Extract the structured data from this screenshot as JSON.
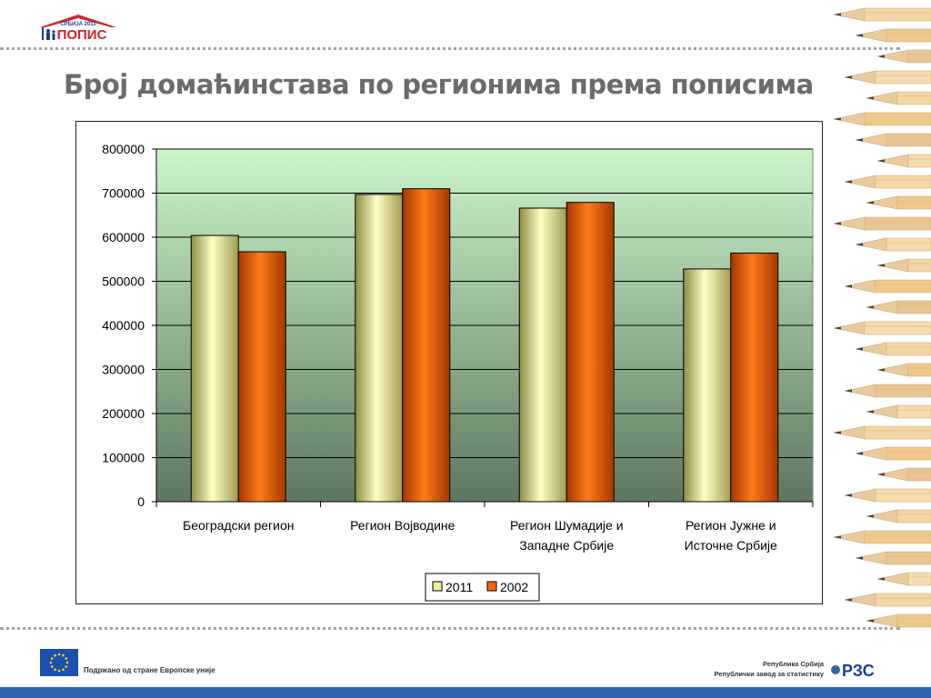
{
  "logo": {
    "top_text": "СРБИЈА 2011",
    "main_text": "ПОПИС"
  },
  "title": "Број домаћинстава по регионима према пописима",
  "chart_data": {
    "type": "bar",
    "title": "",
    "xlabel": "",
    "ylabel": "",
    "categories": [
      [
        "Београдски регион"
      ],
      [
        "Регион Војводине"
      ],
      [
        "Регион Шумадије и",
        "Западне Србије"
      ],
      [
        "Регион Јужне и",
        "Источне Србије"
      ]
    ],
    "series": [
      {
        "name": "2011",
        "values": [
          604000,
          697000,
          666000,
          528000
        ],
        "color": "#f0ee9a"
      },
      {
        "name": "2002",
        "values": [
          567000,
          710000,
          679000,
          564000
        ],
        "color": "#ff6600"
      }
    ],
    "ylim": [
      0,
      800000
    ],
    "yticks": [
      "0",
      "100000",
      "200000",
      "300000",
      "400000",
      "500000",
      "600000",
      "700000",
      "800000"
    ],
    "grid": true,
    "legend": "bottom"
  },
  "footer": {
    "eu_text": "Подржано од стране Европске уније",
    "rzs_line1": "Република Србија",
    "rzs_line2": "Републички завод за статистику",
    "rzs_logo": "РЗС"
  },
  "colors": {
    "title": "#6b6b6b",
    "plot_top": "#ccf5cc",
    "plot_bottom": "#5e7760",
    "footer_bar": "#2f64b0"
  },
  "icons": [
    "house-logo-icon",
    "eu-flag-icon",
    "rzs-logo-icon",
    "pencils-decoration"
  ]
}
